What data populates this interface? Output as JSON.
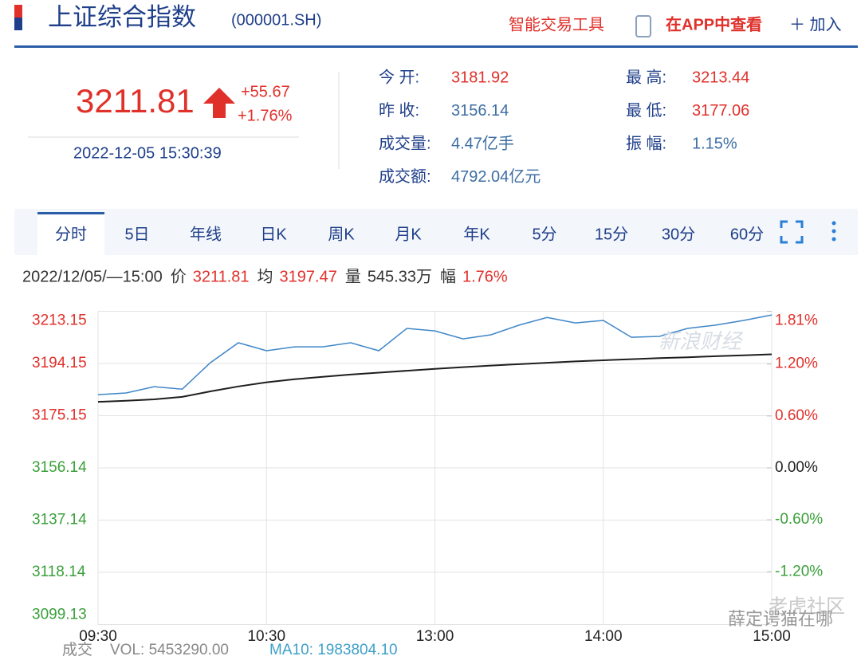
{
  "header": {
    "title": "上证综合指数",
    "code": "(000001.SH)",
    "tools": "智能交易工具",
    "app": "在APP中查看",
    "add": "＋ 加入"
  },
  "quote": {
    "price": "3211.81",
    "change": "+55.67",
    "change_pct": "+1.76%",
    "time": "2022-12-05 15:30:39",
    "stats": [
      {
        "label": "今 开:",
        "value": "3181.92",
        "color": "#e0302a"
      },
      {
        "label": "昨 收:",
        "value": "3156.14",
        "color": "#3d6ea3"
      },
      {
        "label": "成交量:",
        "value": "4.47亿手",
        "color": "#3d6ea3"
      },
      {
        "label": "成交额:",
        "value": "4792.04亿元",
        "color": "#3d6ea3"
      },
      {
        "label": "最 高:",
        "value": "3213.44",
        "color": "#e0302a"
      },
      {
        "label": "最 低:",
        "value": "3177.06",
        "color": "#e0302a"
      },
      {
        "label": "振 幅:",
        "value": "1.15%",
        "color": "#3d6ea3"
      }
    ]
  },
  "tabs": [
    "分时",
    "5日",
    "年线",
    "日K",
    "周K",
    "月K",
    "年K",
    "5分",
    "15分",
    "30分",
    "60分"
  ],
  "info_bar": {
    "time": "2022/12/05/—15:00",
    "items": [
      {
        "label": "价",
        "value": "3211.81",
        "color": "#e0302a"
      },
      {
        "label": "均",
        "value": "3197.47",
        "color": "#e0302a"
      },
      {
        "label": "量",
        "value": "545.33万",
        "color": "#333333"
      },
      {
        "label": "幅",
        "value": "1.76%",
        "color": "#e0302a"
      }
    ]
  },
  "chart_data": {
    "type": "line",
    "x": [
      0,
      10,
      20,
      30,
      40,
      50,
      60,
      70,
      80,
      90,
      100,
      110,
      120,
      130,
      140,
      150,
      160,
      170,
      180,
      190,
      200,
      210,
      220,
      230,
      240
    ],
    "xlim": [
      0,
      240
    ],
    "xticks": [
      {
        "value": 0,
        "label": "09:30"
      },
      {
        "value": 60,
        "label": "10:30"
      },
      {
        "value": 120,
        "label": "13:00"
      },
      {
        "value": 180,
        "label": "14:00"
      },
      {
        "value": 240,
        "label": "15:00"
      }
    ],
    "series": [
      {
        "name": "价",
        "color": "#3f86c8",
        "values": [
          3182.8,
          3183.4,
          3185.7,
          3184.8,
          3194.4,
          3201.7,
          3198.8,
          3200.2,
          3200.2,
          3201.7,
          3198.8,
          3206.9,
          3206.0,
          3203.1,
          3204.6,
          3208.1,
          3210.9,
          3208.9,
          3209.8,
          3203.7,
          3204.0,
          3206.9,
          3208.1,
          3209.8,
          3211.81
        ]
      },
      {
        "name": "均",
        "color": "#1e1e1e",
        "values": [
          3180.2,
          3180.6,
          3181.1,
          3182.0,
          3184.0,
          3185.8,
          3187.3,
          3188.4,
          3189.3,
          3190.1,
          3190.8,
          3191.5,
          3192.2,
          3192.8,
          3193.4,
          3193.9,
          3194.4,
          3194.9,
          3195.3,
          3195.7,
          3196.1,
          3196.4,
          3196.8,
          3197.1,
          3197.47
        ]
      }
    ],
    "ylim": [
      3099.13,
      3213.15
    ],
    "yticks": [
      3213.15,
      3194.15,
      3175.15,
      3156.14,
      3137.14,
      3118.14,
      3099.13
    ],
    "y2lim": [
      -1.81,
      1.81
    ],
    "y2ticks": [
      {
        "value": 1.81,
        "label": "1.81%"
      },
      {
        "value": 1.2,
        "label": "1.20%"
      },
      {
        "value": 0.6,
        "label": "0.60%"
      },
      {
        "value": 0,
        "label": "0.00%"
      },
      {
        "value": -0.6,
        "label": "-0.60%"
      },
      {
        "value": -1.2,
        "label": "-1.20%"
      }
    ],
    "grid": true
  },
  "volume_bar": {
    "label": "成交",
    "vol": "VOL: 5453290.00",
    "ma": "MA10: 1983804.10"
  },
  "watermarks": [
    "新浪财经",
    "老虎社区",
    "薛定谔猫在哪"
  ]
}
